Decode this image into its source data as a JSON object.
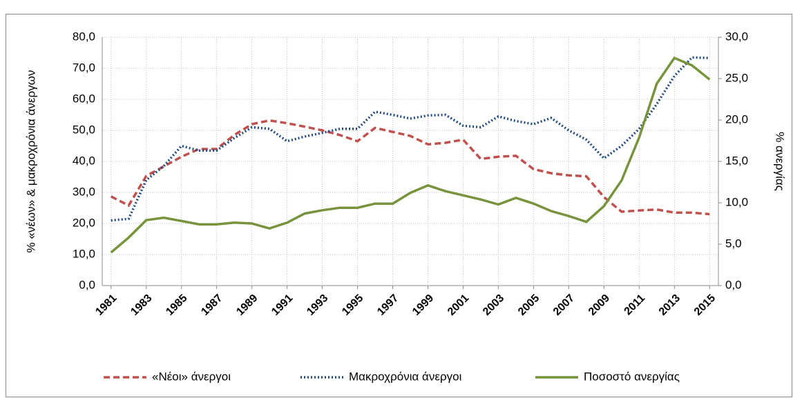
{
  "chart_data": {
    "type": "line",
    "x": [
      1981,
      1982,
      1983,
      1984,
      1985,
      1986,
      1987,
      1988,
      1989,
      1990,
      1991,
      1992,
      1993,
      1994,
      1995,
      1996,
      1997,
      1998,
      1999,
      2000,
      2001,
      2002,
      2003,
      2004,
      2005,
      2006,
      2007,
      2008,
      2009,
      2010,
      2011,
      2012,
      2013,
      2014,
      2015
    ],
    "xlim": [
      1980.5,
      2015.5
    ],
    "xticks": [
      1981,
      1983,
      1985,
      1987,
      1989,
      1991,
      1993,
      1995,
      1997,
      1999,
      2001,
      2003,
      2005,
      2007,
      2009,
      2011,
      2013,
      2015
    ],
    "ylabel": "% «νέων» &  μακροχρόνια άνεργων",
    "y2label": "% ανεργίας",
    "ylim": [
      0,
      80
    ],
    "yticks": [
      {
        "value": 0,
        "label": "0,0"
      },
      {
        "value": 10,
        "label": "10,0"
      },
      {
        "value": 20,
        "label": "20,0"
      },
      {
        "value": 30,
        "label": "30,0"
      },
      {
        "value": 40,
        "label": "40,0"
      },
      {
        "value": 50,
        "label": "50,0"
      },
      {
        "value": 60,
        "label": "60,0"
      },
      {
        "value": 70,
        "label": "70,0"
      },
      {
        "value": 80,
        "label": "80,0"
      }
    ],
    "y2lim": [
      0,
      30
    ],
    "y2ticks": [
      {
        "value": 0,
        "label": "0,0"
      },
      {
        "value": 5,
        "label": "5,0"
      },
      {
        "value": 10,
        "label": "10,0"
      },
      {
        "value": 15,
        "label": "15,0"
      },
      {
        "value": 20,
        "label": "20,0"
      },
      {
        "value": 25,
        "label": "25,0"
      },
      {
        "value": 30,
        "label": "30,0"
      }
    ],
    "grid": true,
    "legend": "bottom",
    "series": [
      {
        "name": "«Νέοι»  άνεργοι",
        "color": "#c0504d",
        "dash": "dashed",
        "values": [
          28.7,
          25.8,
          35.3,
          38.4,
          41.5,
          44,
          44,
          48.5,
          52,
          53.2,
          52.3,
          51.2,
          50,
          48.5,
          46.5,
          50.8,
          49.5,
          48.2,
          45.5,
          46,
          47,
          40.8,
          41.5,
          41.8,
          37.5,
          36.2,
          35.5,
          35.2,
          28.5,
          23.8,
          24.2,
          24.5,
          23.5,
          23.5,
          23
        ]
      },
      {
        "name": "Μακροχρόνια άνεργοι",
        "color": "#1f497d",
        "dash": "dotted",
        "values": [
          21,
          21.5,
          34,
          38.5,
          45,
          43.5,
          43.5,
          47.5,
          51,
          50.5,
          46.5,
          48,
          49.2,
          50.5,
          50.5,
          56,
          55,
          53.8,
          54.8,
          55,
          51.5,
          51,
          54.5,
          53,
          52,
          54,
          50,
          47,
          41,
          45,
          50.5,
          58.5,
          67.5,
          73.5,
          73.3
        ]
      },
      {
        "name": "Ποσοστό ανεργίας",
        "color": "#77933c",
        "dash": "solid",
        "axis": "y2",
        "values": [
          4.0,
          5.8,
          7.9,
          8.2,
          7.8,
          7.4,
          7.4,
          7.6,
          7.5,
          6.9,
          7.6,
          8.7,
          9.1,
          9.4,
          9.4,
          9.9,
          9.9,
          11.2,
          12.1,
          11.4,
          10.9,
          10.4,
          9.8,
          10.6,
          9.9,
          9.0,
          8.4,
          7.7,
          9.6,
          12.7,
          17.9,
          24.4,
          27.5,
          26.6,
          24.9
        ]
      }
    ]
  }
}
